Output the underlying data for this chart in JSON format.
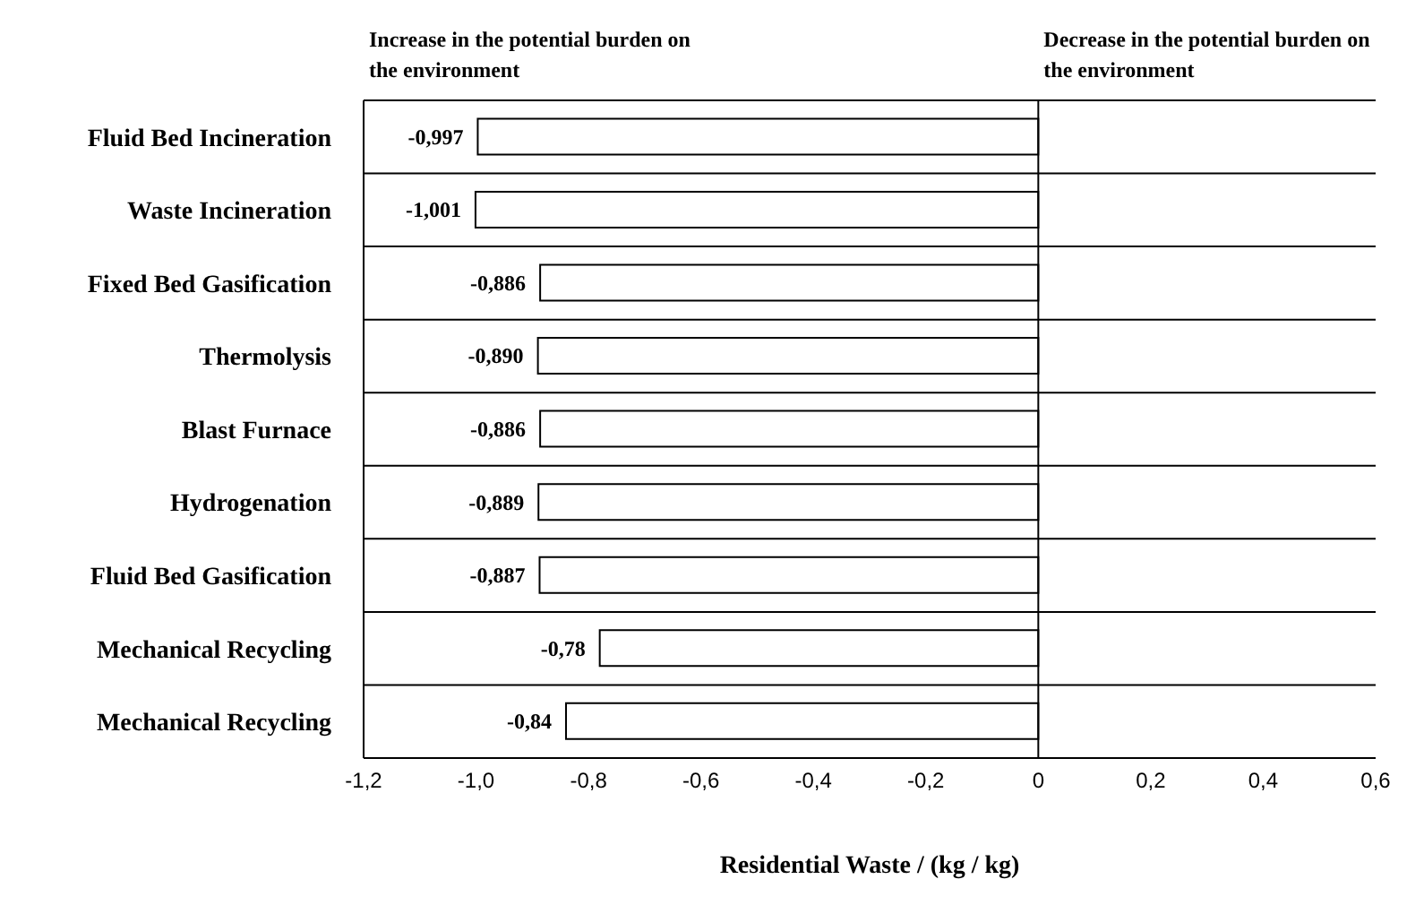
{
  "chart_data": {
    "type": "bar",
    "orientation": "horizontal",
    "xlabel": "Residential Waste / (kg / kg)",
    "categories": [
      "Fluid Bed Incineration",
      "Waste Incineration",
      "Fixed Bed Gasification",
      "Thermolysis",
      "Blast Furnace",
      "Hydrogenation",
      "Fluid Bed Gasification",
      "Mechanical Recycling",
      "Mechanical Recycling"
    ],
    "values": [
      -0.997,
      -1.001,
      -0.886,
      -0.89,
      -0.886,
      -0.889,
      -0.887,
      -0.78,
      -0.84
    ],
    "value_labels": [
      "-0,997",
      "-1,001",
      "-0,886",
      "-0,890",
      "-0,886",
      "-0,889",
      "-0,887",
      "-0,78",
      "-0,84"
    ],
    "color": "#ffffff",
    "xlim": [
      -1.2,
      0.6
    ],
    "xticks": [
      {
        "value": -1.2,
        "label": "-1,2"
      },
      {
        "value": -1.0,
        "label": "-1,0"
      },
      {
        "value": -0.8,
        "label": "-0,8"
      },
      {
        "value": -0.6,
        "label": "-0,6"
      },
      {
        "value": -0.4,
        "label": "-0,4"
      },
      {
        "value": -0.2,
        "label": "-0,2"
      },
      {
        "value": 0,
        "label": "0"
      },
      {
        "value": 0.2,
        "label": "0,2"
      },
      {
        "value": 0.4,
        "label": "0,4"
      },
      {
        "value": 0.6,
        "label": "0,6"
      }
    ],
    "grid": "y",
    "ref_lines": [
      {
        "axis": "x",
        "value": 0,
        "color": "#000000"
      }
    ],
    "annotations": [
      "Increase in the potential burden on the environment",
      "Decrease in the potential burden on the environment"
    ]
  }
}
